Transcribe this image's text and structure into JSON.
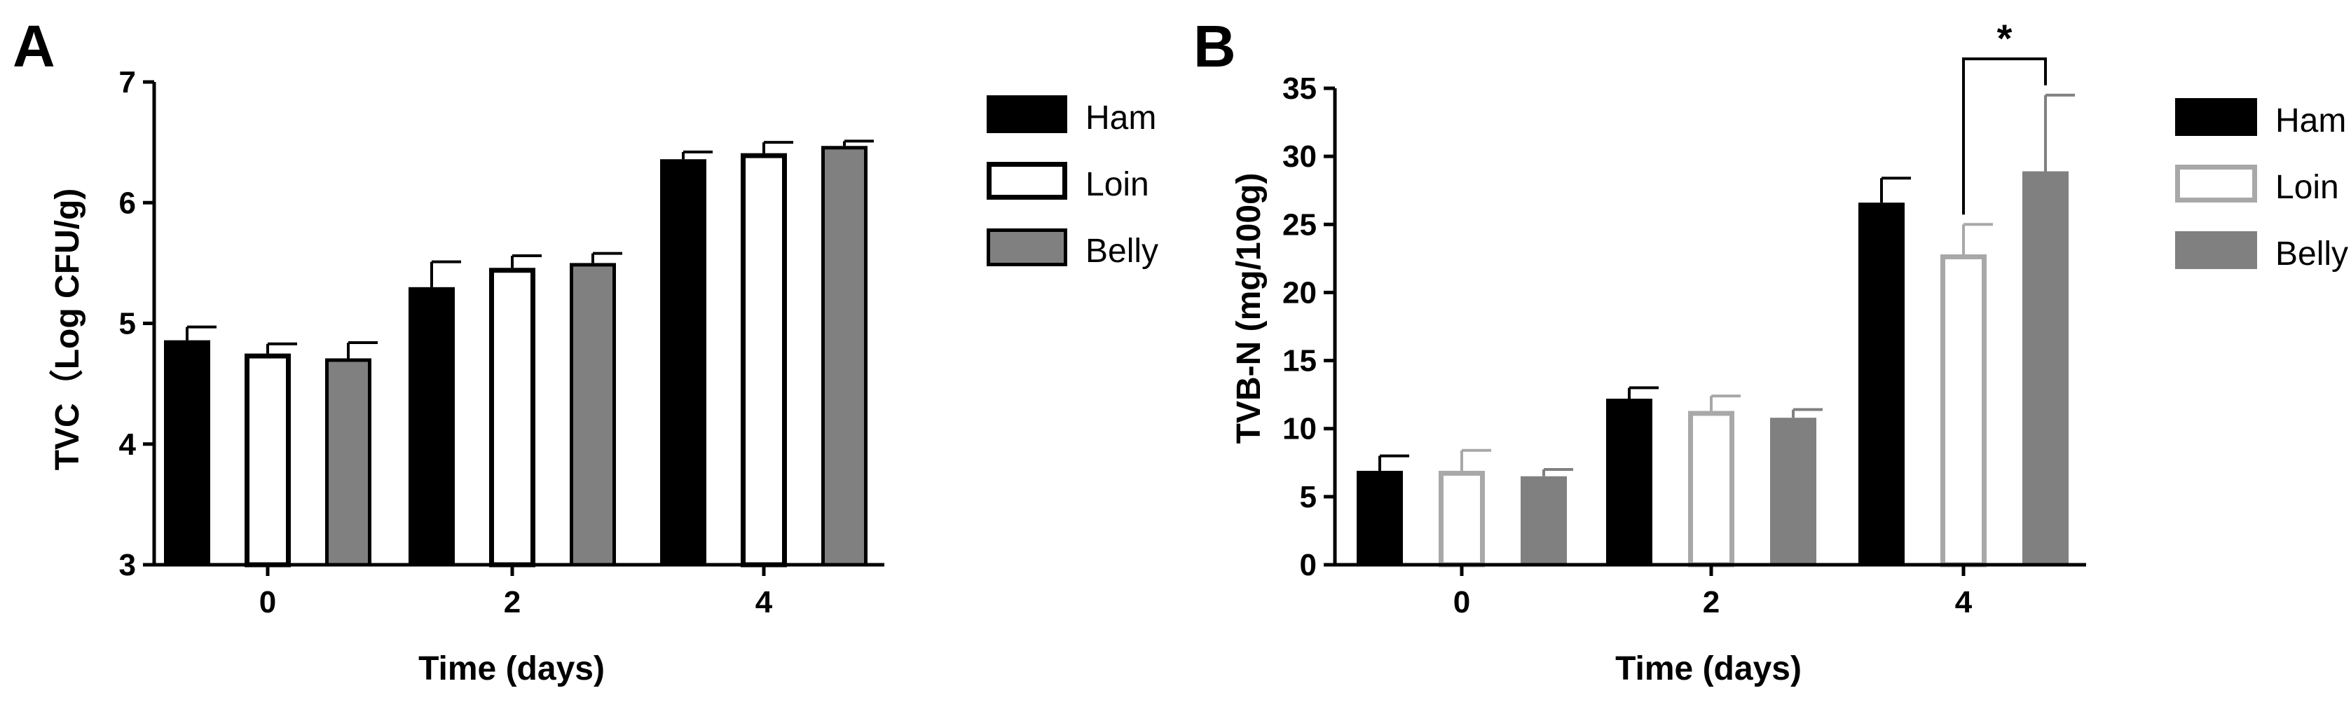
{
  "chart_data": [
    {
      "panel": "A",
      "type": "bar",
      "xlabel": "Time (days)",
      "ylabel": "TVC（Log CFU/g)",
      "categories": [
        "0",
        "2",
        "4"
      ],
      "ylim": [
        3,
        7
      ],
      "yticks": [
        3,
        4,
        5,
        6,
        7
      ],
      "grid": false,
      "legend": "right",
      "series": [
        {
          "name": "Ham",
          "style": "filled",
          "fill": "#000000",
          "stroke": "#000000",
          "values": [
            4.86,
            5.3,
            6.36
          ],
          "errors": [
            0.11,
            0.21,
            0.06
          ]
        },
        {
          "name": "Loin",
          "style": "outline",
          "fill": "#ffffff",
          "stroke": "#000000",
          "values": [
            4.75,
            5.46,
            6.41
          ],
          "errors": [
            0.08,
            0.1,
            0.09
          ]
        },
        {
          "name": "Belly",
          "style": "filled",
          "fill": "#808080",
          "stroke": "#000000",
          "values": [
            4.71,
            5.5,
            6.47
          ],
          "errors": [
            0.13,
            0.08,
            0.04
          ]
        }
      ]
    },
    {
      "panel": "B",
      "type": "bar",
      "xlabel": "Time (days)",
      "ylabel": "TVB-N (mg/100g)",
      "categories": [
        "0",
        "2",
        "4"
      ],
      "ylim": [
        0,
        35
      ],
      "yticks": [
        0,
        5,
        10,
        15,
        20,
        25,
        30,
        35
      ],
      "grid": false,
      "legend": "right",
      "series": [
        {
          "name": "Ham",
          "style": "filled",
          "fill": "#000000",
          "stroke": "#000000",
          "values": [
            6.9,
            12.2,
            26.6
          ],
          "errors": [
            1.1,
            0.8,
            1.8
          ]
        },
        {
          "name": "Loin",
          "style": "outline",
          "fill": "#ffffff",
          "stroke": "#a8a8a8",
          "values": [
            6.9,
            11.3,
            22.8
          ],
          "errors": [
            1.5,
            1.1,
            2.2
          ]
        },
        {
          "name": "Belly",
          "style": "filled",
          "fill": "#808080",
          "stroke": "#808080",
          "values": [
            6.5,
            10.8,
            28.9
          ],
          "errors": [
            0.5,
            0.6,
            5.6
          ]
        }
      ],
      "annotations": [
        {
          "text": "*",
          "between": [
            "Loin",
            "Belly"
          ],
          "category": "4"
        }
      ]
    }
  ]
}
